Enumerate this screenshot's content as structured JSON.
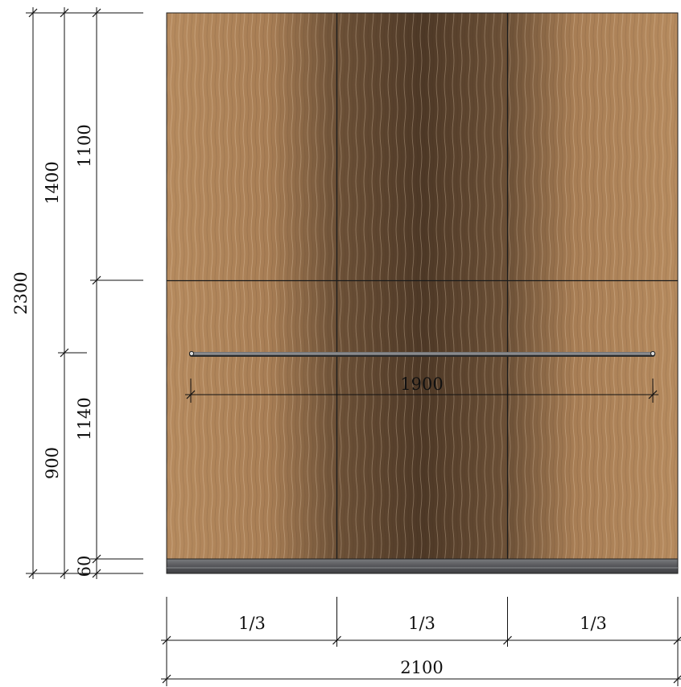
{
  "drawing": {
    "panel": {
      "material": "wood veneer",
      "colors": {
        "wood_light": "#b58a5e",
        "wood_mid": "#8c6845",
        "wood_dark": "#4f3a27",
        "skirting": "#5f6063",
        "rail": "#6d6e70"
      },
      "column_count": 3
    },
    "dimensions": {
      "vertical": {
        "total": "2300",
        "upper_a": "1400",
        "lower_a": "900",
        "upper_b": "1100",
        "lower_b": "1140",
        "base": "60"
      },
      "rail_length": "1900",
      "columns": [
        "1/3",
        "1/3",
        "1/3"
      ],
      "total_width": "2100"
    }
  }
}
